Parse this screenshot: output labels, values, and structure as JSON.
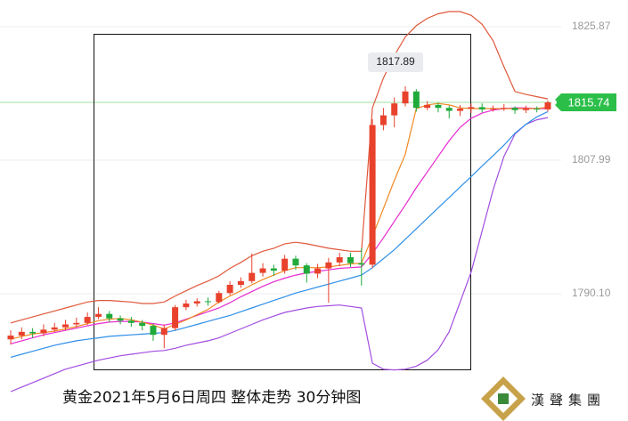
{
  "chart_data": {
    "type": "candlestick",
    "title": "黄金2021年5月6日周四 整体走势 30分钟图",
    "ylim": [
      1773.06,
      1829.45
    ],
    "yticks": [
      1790.1,
      1807.99,
      1825.87
    ],
    "ytick_labels": [
      "1790.10",
      "1807.99",
      "1825.87"
    ],
    "grid": true,
    "up_color": "#e8412c",
    "down_color": "#1faa3a",
    "open": [
      1784.0,
      1784.5,
      1785.0,
      1784.8,
      1785.3,
      1785.6,
      1786.0,
      1786.2,
      1787.0,
      1787.4,
      1786.8,
      1786.5,
      1786.2,
      1785.8,
      1784.6,
      1785.5,
      1788.3,
      1788.8,
      1789.1,
      1789.0,
      1790.2,
      1791.3,
      1791.8,
      1792.9,
      1793.5,
      1793.2,
      1794.8,
      1793.9,
      1792.8,
      1793.5,
      1794.3,
      1795.0,
      1794.2,
      1794.0,
      1812.7,
      1814.0,
      1815.6,
      1817.2,
      1815.0,
      1815.4,
      1815.0,
      1814.6,
      1814.9,
      1815.1,
      1814.8,
      1814.9,
      1815.0,
      1814.7,
      1814.9,
      1814.8
    ],
    "high": [
      1785.2,
      1785.6,
      1785.5,
      1786.0,
      1786.2,
      1786.6,
      1786.9,
      1787.6,
      1788.3,
      1787.8,
      1787.2,
      1787.0,
      1786.6,
      1786.1,
      1786.0,
      1788.6,
      1789.3,
      1789.5,
      1789.6,
      1790.5,
      1791.8,
      1792.3,
      1795.5,
      1794.2,
      1794.0,
      1795.3,
      1795.2,
      1794.2,
      1794.1,
      1794.9,
      1795.6,
      1795.6,
      1796.2,
      1813.5,
      1815.0,
      1816.4,
      1817.89,
      1817.5,
      1815.9,
      1815.7,
      1815.3,
      1815.4,
      1815.6,
      1815.6,
      1815.3,
      1815.5,
      1815.2,
      1815.3,
      1815.2,
      1816.0
    ],
    "low": [
      1783.3,
      1784.0,
      1784.2,
      1784.4,
      1785.0,
      1785.2,
      1785.6,
      1785.9,
      1786.7,
      1786.3,
      1786.0,
      1785.7,
      1785.2,
      1783.8,
      1782.8,
      1785.2,
      1787.9,
      1788.4,
      1788.5,
      1788.8,
      1789.9,
      1790.9,
      1791.5,
      1792.4,
      1792.5,
      1792.8,
      1793.3,
      1791.6,
      1792.2,
      1788.9,
      1793.8,
      1793.7,
      1791.2,
      1793.5,
      1812.0,
      1812.4,
      1815.2,
      1814.5,
      1814.7,
      1814.4,
      1813.6,
      1813.9,
      1814.3,
      1814.4,
      1814.5,
      1814.6,
      1814.2,
      1814.3,
      1814.4,
      1814.5
    ],
    "close": [
      1784.5,
      1785.0,
      1784.8,
      1785.3,
      1785.6,
      1786.0,
      1786.2,
      1787.0,
      1787.4,
      1786.8,
      1786.5,
      1786.2,
      1785.8,
      1784.6,
      1785.5,
      1788.3,
      1788.8,
      1789.1,
      1789.0,
      1790.2,
      1791.3,
      1791.8,
      1792.9,
      1793.5,
      1793.2,
      1794.8,
      1793.9,
      1792.8,
      1793.5,
      1794.3,
      1795.0,
      1794.2,
      1794.0,
      1812.7,
      1814.0,
      1815.6,
      1817.2,
      1815.0,
      1815.4,
      1815.0,
      1814.6,
      1814.9,
      1815.1,
      1814.8,
      1814.9,
      1815.0,
      1814.7,
      1814.9,
      1814.8,
      1815.74
    ],
    "annotation_index": 36,
    "lines": [
      {
        "color": "#e0583a",
        "values": [
          1786.2,
          1786.6,
          1787.0,
          1787.4,
          1787.8,
          1788.2,
          1788.6,
          1789.0,
          1789.2,
          1789.2,
          1789.1,
          1789.0,
          1788.8,
          1788.8,
          1789.0,
          1789.8,
          1790.5,
          1791.2,
          1791.8,
          1792.5,
          1793.5,
          1794.3,
          1795.2,
          1795.8,
          1796.2,
          1796.8,
          1797.0,
          1796.8,
          1796.5,
          1796.2,
          1796.0,
          1795.8,
          1795.8,
          1815.0,
          1819.0,
          1822.0,
          1824.5,
          1826.0,
          1827.0,
          1827.6,
          1827.9,
          1827.9,
          1827.4,
          1826.2,
          1824.0,
          1820.5,
          1817.2,
          1816.8,
          1816.5,
          1816.2
        ]
      },
      {
        "color": "#a24de0",
        "values": [
          1777.0,
          1777.6,
          1778.2,
          1778.8,
          1779.4,
          1780.0,
          1780.4,
          1780.8,
          1781.2,
          1781.5,
          1781.8,
          1782.0,
          1782.2,
          1782.4,
          1782.5,
          1782.8,
          1783.2,
          1783.5,
          1783.8,
          1784.2,
          1784.8,
          1785.4,
          1786.0,
          1786.6,
          1787.1,
          1787.6,
          1787.9,
          1788.2,
          1788.4,
          1788.5,
          1788.6,
          1788.4,
          1788.2,
          1780.8,
          1780.0,
          1779.9,
          1780.0,
          1780.4,
          1781.2,
          1782.6,
          1785.0,
          1789.0,
          1793.0,
          1798.5,
          1804.0,
          1808.5,
          1811.5,
          1812.8,
          1813.4,
          1813.7
        ]
      },
      {
        "color": "#2e8fe8",
        "values": [
          1781.6,
          1782.0,
          1782.4,
          1782.8,
          1783.2,
          1783.5,
          1783.8,
          1784.0,
          1784.2,
          1784.4,
          1784.5,
          1784.6,
          1784.7,
          1784.8,
          1784.9,
          1785.2,
          1785.6,
          1786.0,
          1786.4,
          1786.8,
          1787.2,
          1787.7,
          1788.2,
          1788.7,
          1789.2,
          1789.7,
          1790.2,
          1790.6,
          1791.0,
          1791.4,
          1791.8,
          1792.2,
          1792.6,
          1793.6,
          1794.8,
          1796.0,
          1797.4,
          1798.8,
          1800.2,
          1801.6,
          1803.0,
          1804.4,
          1805.8,
          1807.2,
          1808.6,
          1810.0,
          1811.6,
          1812.8,
          1813.8,
          1814.5
        ]
      },
      {
        "color": "#e62ad0",
        "values": [
          1783.4,
          1783.8,
          1784.2,
          1784.6,
          1784.9,
          1785.2,
          1785.5,
          1785.8,
          1786.1,
          1786.3,
          1786.4,
          1786.4,
          1786.3,
          1786.1,
          1785.9,
          1786.2,
          1786.7,
          1787.2,
          1787.7,
          1788.2,
          1788.9,
          1789.7,
          1790.4,
          1791.1,
          1791.7,
          1792.2,
          1792.6,
          1792.9,
          1793.1,
          1793.3,
          1793.5,
          1793.6,
          1793.7,
          1795.5,
          1797.6,
          1799.8,
          1802.0,
          1804.3,
          1806.4,
          1808.5,
          1810.6,
          1812.4,
          1813.6,
          1814.3,
          1814.7,
          1814.9,
          1815.0,
          1815.0,
          1814.9,
          1814.9
        ]
      },
      {
        "color": "#f08a24",
        "values": [
          1784.0,
          1784.4,
          1784.7,
          1784.9,
          1785.1,
          1785.4,
          1785.7,
          1786.1,
          1786.5,
          1786.7,
          1786.8,
          1786.6,
          1786.3,
          1785.9,
          1785.4,
          1786.0,
          1786.6,
          1787.3,
          1788.0,
          1789.0,
          1789.8,
          1790.5,
          1791.3,
          1792.0,
          1792.6,
          1793.2,
          1793.6,
          1793.6,
          1793.6,
          1793.7,
          1793.9,
          1794.1,
          1794.2,
          1797.8,
          1801.5,
          1805.3,
          1808.8,
          1814.9,
          1815.4,
          1815.6,
          1815.4,
          1815.0,
          1814.9,
          1814.9,
          1814.9,
          1814.9,
          1814.9,
          1814.9,
          1814.9,
          1815.1
        ]
      }
    ],
    "price_line_color": "#9ee09e"
  },
  "logo": {
    "text": "漢聲集團"
  }
}
